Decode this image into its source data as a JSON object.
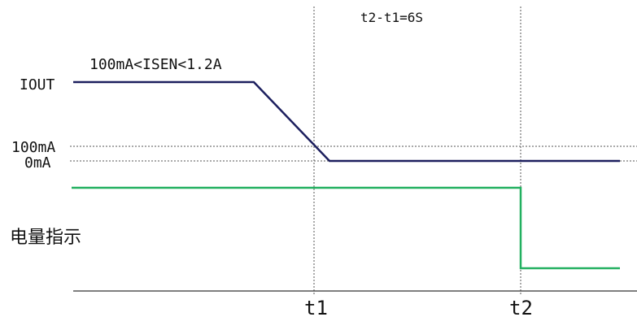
{
  "labels": {
    "iout": "IOUT",
    "current_range": "100mA<ISEN<1.2A",
    "level_100ma": "100mA",
    "level_0ma": "0mA",
    "battery_indicator": "电量指示",
    "time_delta": "t2-t1=6S",
    "t1": "t1",
    "t2": "t2"
  },
  "colors": {
    "current_waveform": "#1c1f5e",
    "indicator_waveform": "#22b060",
    "reference_lines": "#555555",
    "axis": "#333333",
    "text": "#111111"
  }
}
